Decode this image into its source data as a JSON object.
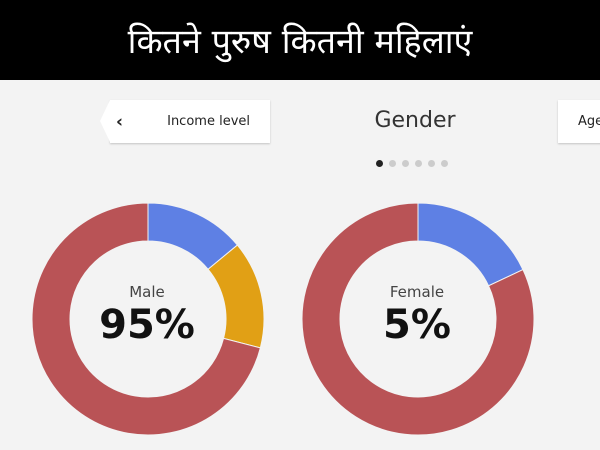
{
  "banner": {
    "title": "कितने पुरुष कितनी महिलाएं"
  },
  "nav": {
    "prev_label": "Income level",
    "prev_icon": "chevron-left-icon",
    "title": "Gender",
    "next_label": "Age",
    "pages": 6,
    "current_page": 1
  },
  "colors": {
    "red": "#b95356",
    "blue": "#5e80e4",
    "orange": "#e1a015"
  },
  "chart_data": [
    {
      "type": "pie",
      "label": "Male",
      "value_text": "95%",
      "segments": [
        {
          "value": 14,
          "color": "#5e80e4"
        },
        {
          "value": 15,
          "color": "#e1a015"
        },
        {
          "value": 71,
          "color": "#b95356"
        }
      ]
    },
    {
      "type": "pie",
      "label": "Female",
      "value_text": "5%",
      "segments": [
        {
          "value": 18,
          "color": "#5e80e4"
        },
        {
          "value": 82,
          "color": "#b95356"
        }
      ]
    }
  ]
}
